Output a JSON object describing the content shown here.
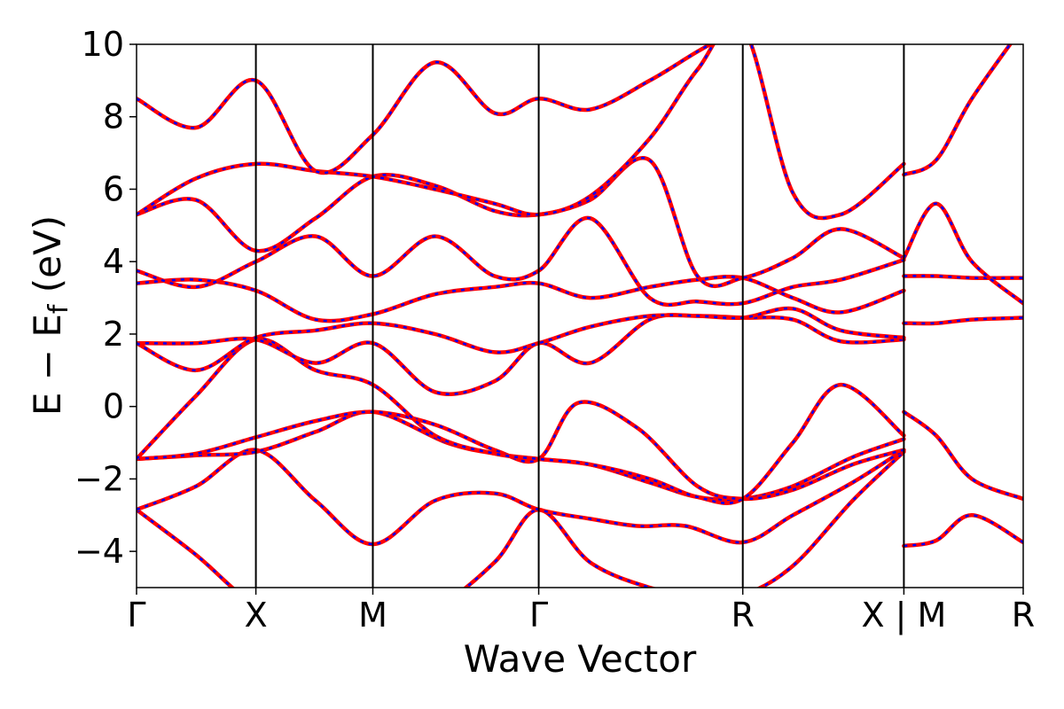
{
  "chart_data": {
    "type": "line",
    "xlabel": "Wave Vector",
    "ylabel": "E − E",
    "ylabel_sub": "f",
    "ylabel_unit": " (eV)",
    "ylim": [
      -5,
      10
    ],
    "yticks": [
      -4,
      -2,
      0,
      2,
      4,
      6,
      8,
      10
    ],
    "ytick_labels": [
      "−4",
      "−2",
      "0",
      "2",
      "4",
      "6",
      "8",
      "10"
    ],
    "xlim": [
      0,
      7.43
    ],
    "kpoints": [
      {
        "label": "Γ",
        "x": 0
      },
      {
        "label": "X",
        "x": 1
      },
      {
        "label": "M",
        "x": 1.98
      },
      {
        "label": "Γ",
        "x": 3.37
      },
      {
        "label": "R",
        "x": 5.08
      },
      {
        "label": "X | M",
        "x": 6.43
      },
      {
        "label": "R",
        "x": 7.43
      }
    ],
    "grid": false,
    "line_style": {
      "solid_color": "#ff0000",
      "dashed_color": "#0000ff"
    },
    "bands": [
      {
        "name": "",
        "x": [
          0,
          0.5,
          1,
          1.5,
          1.98,
          2.5,
          3,
          3.37,
          3.8,
          4.3,
          4.7,
          5.08,
          5.5,
          6,
          6.43
        ],
        "y": [
          -2.85,
          -4.1,
          -5.5,
          -6,
          -6.2,
          -5.6,
          -4.3,
          -2.85,
          -4.3,
          -5,
          -5.2,
          -5.2,
          -4.4,
          -2.6,
          -1.25
        ]
      },
      {
        "name": "",
        "x": [
          0,
          0.5,
          1,
          1.5,
          1.98,
          2.5,
          3,
          3.37,
          3.8,
          4.2,
          4.6,
          5.08,
          5.5,
          6,
          6.43
        ],
        "y": [
          -2.85,
          -2.2,
          -1.2,
          -2.6,
          -3.8,
          -2.6,
          -2.4,
          -2.85,
          -3.1,
          -3.3,
          -3.3,
          -3.75,
          -3.0,
          -2.1,
          -1.2
        ]
      },
      {
        "name": "",
        "x": [
          0,
          0.5,
          1,
          1.5,
          1.98,
          2.6,
          3,
          3.37,
          3.8,
          4.3,
          4.7,
          5.08,
          5.5,
          6,
          6.43
        ],
        "y": [
          -1.45,
          -1.35,
          -1.25,
          -0.7,
          -0.15,
          -1.0,
          -1.3,
          -1.45,
          -1.6,
          -2.1,
          -2.5,
          -2.55,
          -2.2,
          -1.4,
          -0.9
        ]
      },
      {
        "name": "",
        "x": [
          0,
          0.5,
          1,
          1.5,
          1.98,
          2.5,
          3,
          3.37,
          3.7,
          4.2,
          4.7,
          5.08,
          5.5,
          6,
          6.43
        ],
        "y": [
          -1.45,
          -1.3,
          -0.85,
          -0.4,
          -0.15,
          -0.5,
          -1.2,
          -1.45,
          0.1,
          -0.6,
          -2.2,
          -2.55,
          -2.3,
          -1.6,
          -1.2
        ]
      },
      {
        "name": "",
        "x": [
          0,
          0.5,
          1,
          1.5,
          1.98,
          2.5,
          3,
          3.37,
          3.8,
          4.3,
          4.7,
          5.08,
          5.5,
          5.9,
          6.43
        ],
        "y": [
          -1.45,
          0.3,
          1.85,
          1.0,
          0.6,
          -0.8,
          -1.3,
          -1.45,
          -1.6,
          -2.0,
          -2.5,
          -2.55,
          -1.0,
          0.6,
          -0.8
        ]
      },
      {
        "name": "",
        "x": [
          0,
          0.5,
          1,
          1.5,
          1.98,
          2.5,
          3,
          3.37,
          3.8,
          4.3,
          4.7,
          5.08,
          5.5,
          5.9,
          6.43
        ],
        "y": [
          1.75,
          1.75,
          1.85,
          1.2,
          1.75,
          0.4,
          0.7,
          1.75,
          1.2,
          2.4,
          2.5,
          2.45,
          2.4,
          1.8,
          1.85
        ]
      },
      {
        "name": "",
        "x": [
          0,
          0.5,
          1,
          1.5,
          1.98,
          2.5,
          3,
          3.37,
          3.8,
          4.3,
          4.7,
          5.08,
          5.5,
          5.9,
          6.43
        ],
        "y": [
          1.75,
          1.0,
          1.9,
          2.1,
          2.3,
          2.0,
          1.5,
          1.75,
          2.2,
          2.5,
          2.5,
          2.45,
          2.7,
          2.1,
          1.9
        ]
      },
      {
        "name": "",
        "x": [
          0,
          0.5,
          1,
          1.5,
          1.98,
          2.5,
          3,
          3.37,
          3.8,
          4.3,
          4.7,
          5.08,
          5.5,
          5.9,
          6.43
        ],
        "y": [
          3.4,
          3.5,
          3.2,
          2.4,
          2.55,
          3.1,
          3.3,
          3.4,
          3.0,
          3.3,
          3.5,
          3.55,
          3.0,
          2.6,
          3.2
        ]
      },
      {
        "name": "",
        "x": [
          0,
          0.5,
          1,
          1.5,
          1.98,
          2.5,
          3,
          3.37,
          3.8,
          4.3,
          4.7,
          5.08,
          5.5,
          5.9,
          6.43
        ],
        "y": [
          3.75,
          3.3,
          4.0,
          4.7,
          3.6,
          4.7,
          3.6,
          3.75,
          5.2,
          3.0,
          2.9,
          2.85,
          3.3,
          3.5,
          4.05
        ]
      },
      {
        "name": "",
        "x": [
          0,
          0.5,
          1,
          1.5,
          1.98,
          2.5,
          3,
          3.37,
          3.8,
          4.3,
          4.7,
          5.08,
          5.5,
          5.9,
          6.43
        ],
        "y": [
          5.3,
          5.7,
          4.3,
          5.2,
          6.35,
          6.1,
          5.4,
          5.3,
          5.7,
          6.8,
          3.6,
          3.55,
          4.1,
          4.9,
          4.1
        ]
      },
      {
        "name": "",
        "x": [
          0,
          0.5,
          1,
          1.5,
          1.98,
          2.5,
          3,
          3.37,
          3.8,
          4.3,
          4.7,
          5.08,
          5.5,
          5.9,
          6.43
        ],
        "y": [
          5.3,
          6.3,
          6.7,
          6.5,
          6.35,
          6.0,
          5.6,
          5.3,
          5.8,
          7.4,
          9.3,
          10.5,
          5.9,
          5.3,
          6.7
        ]
      },
      {
        "name": "",
        "x": [
          0,
          0.5,
          1,
          1.5,
          1.98,
          2.5,
          3,
          3.37,
          3.8,
          4.3,
          4.7,
          5.08
        ],
        "y": [
          8.5,
          7.7,
          9.0,
          6.5,
          7.5,
          9.5,
          8.1,
          8.5,
          8.2,
          9.0,
          9.8,
          10.5
        ]
      },
      {
        "name": "",
        "x": [
          6.43,
          6.7,
          7.0,
          7.43
        ],
        "y": [
          -3.85,
          -3.7,
          -3.0,
          -3.75
        ]
      },
      {
        "name": "",
        "x": [
          6.43,
          6.7,
          7.0,
          7.43
        ],
        "y": [
          -0.15,
          -0.8,
          -2.0,
          -2.55
        ]
      },
      {
        "name": "",
        "x": [
          6.43,
          6.7,
          7.0,
          7.43
        ],
        "y": [
          2.3,
          2.3,
          2.4,
          2.45
        ]
      },
      {
        "name": "",
        "x": [
          6.43,
          6.7,
          7.0,
          7.43
        ],
        "y": [
          3.6,
          3.6,
          3.55,
          3.55
        ]
      },
      {
        "name": "",
        "x": [
          6.43,
          6.7,
          7.0,
          7.43
        ],
        "y": [
          4.1,
          5.6,
          4.0,
          2.85
        ]
      },
      {
        "name": "",
        "x": [
          6.43,
          6.7,
          7.0,
          7.43
        ],
        "y": [
          6.4,
          6.8,
          8.5,
          10.5
        ]
      }
    ]
  }
}
